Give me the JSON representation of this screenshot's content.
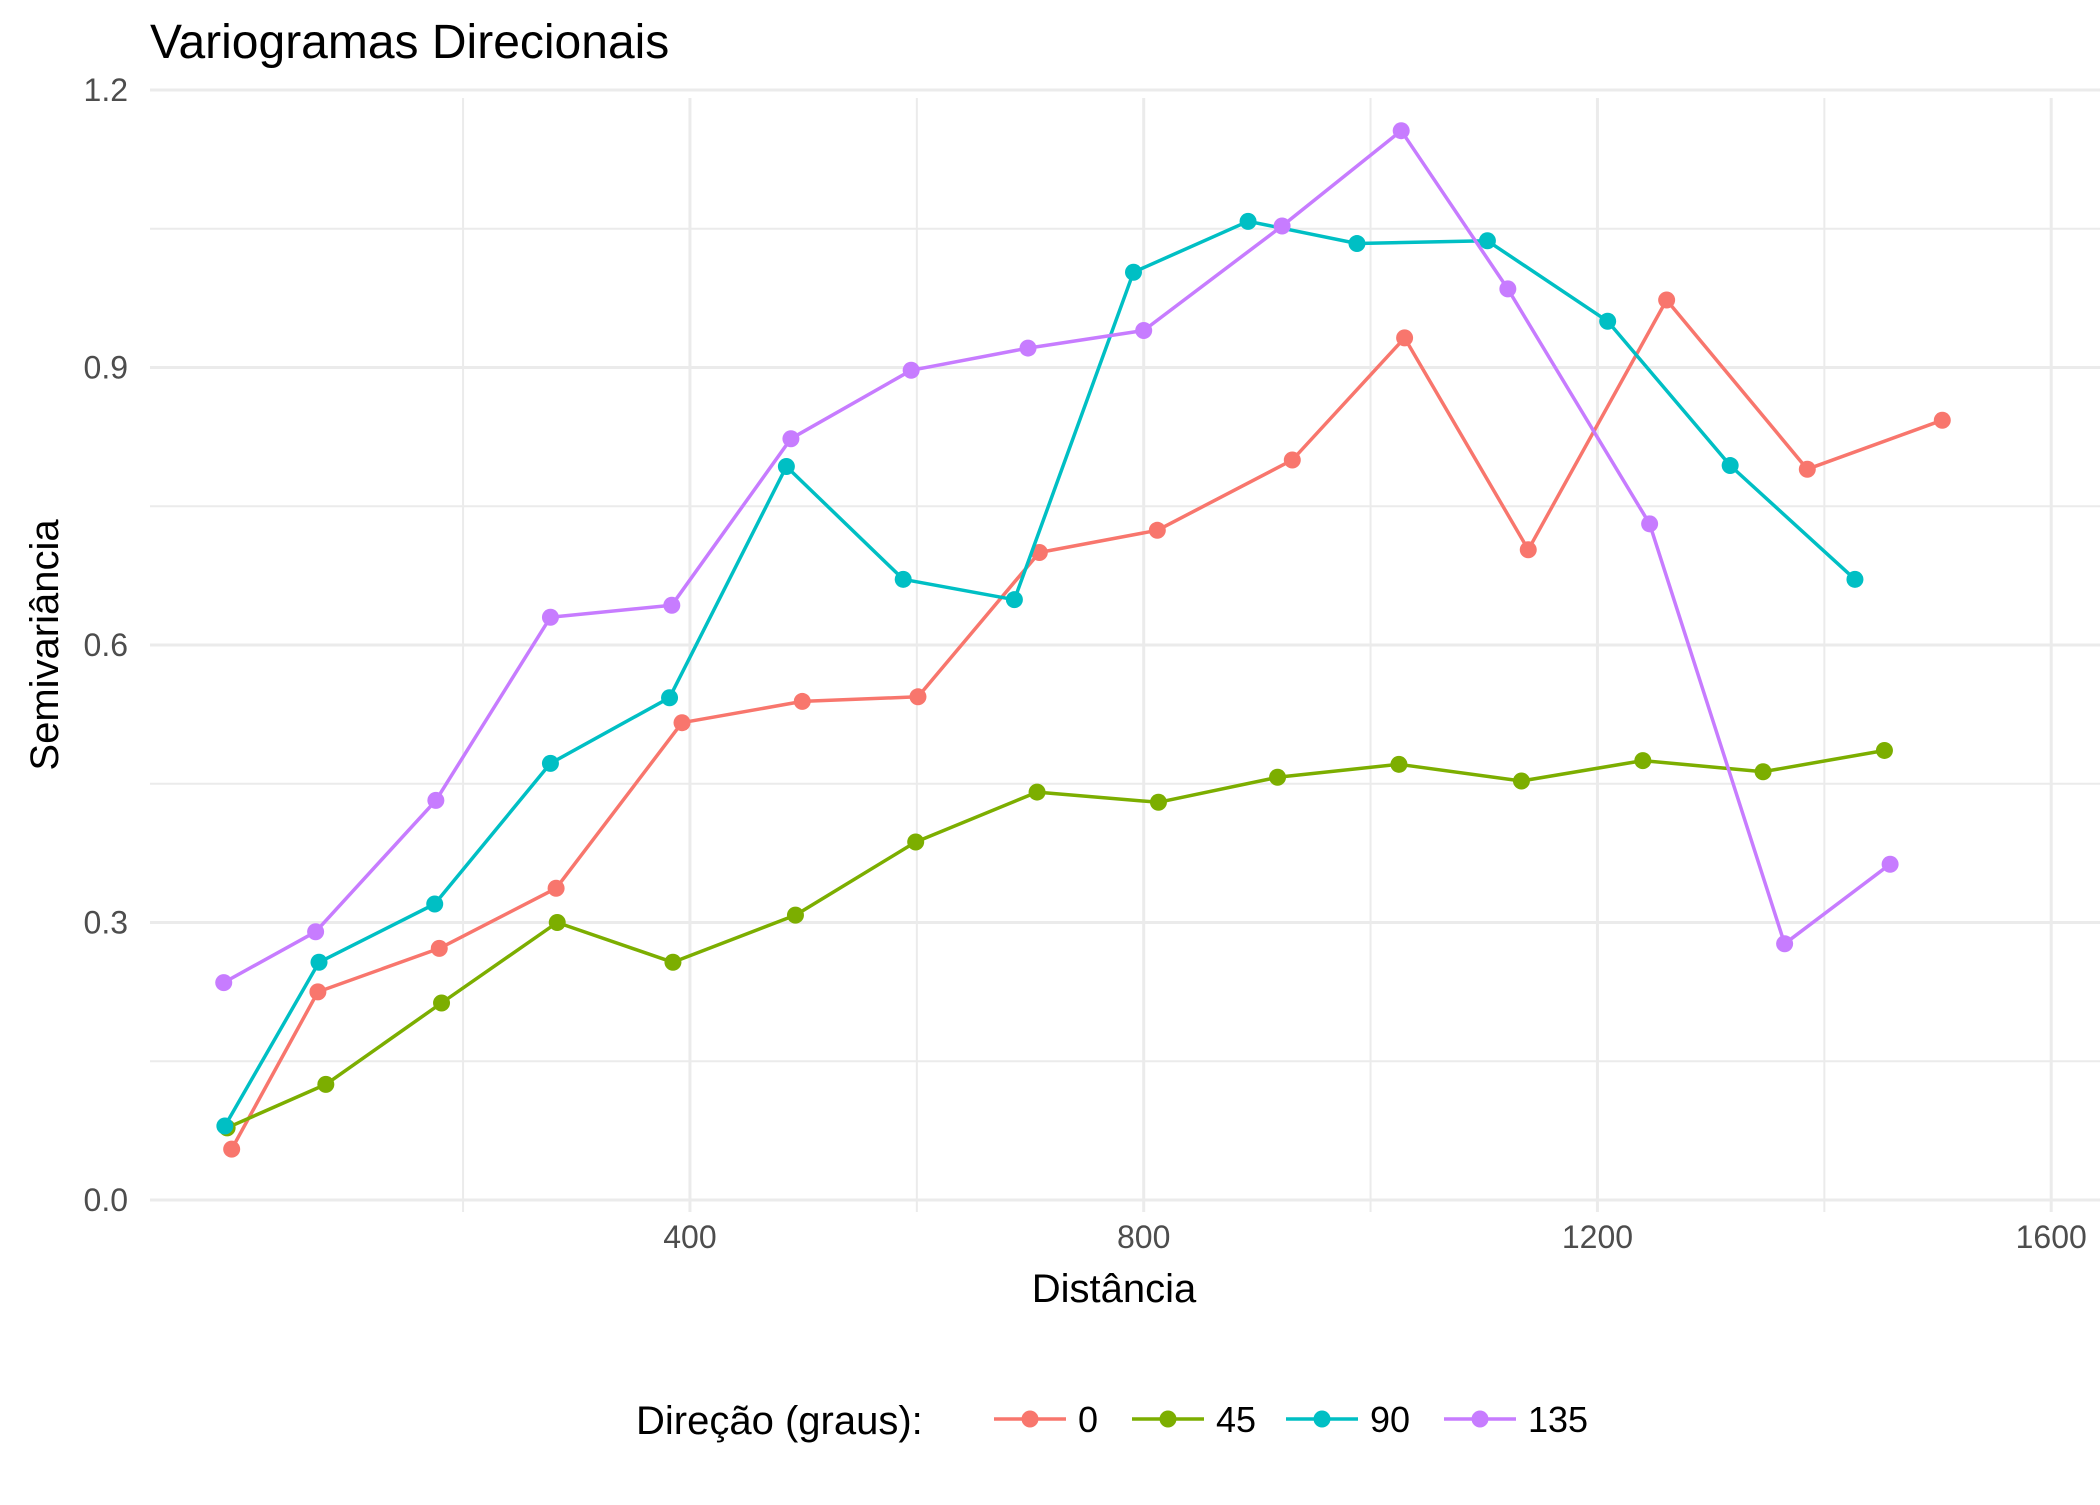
{
  "chart_data": {
    "type": "line",
    "title": "Variogramas Direcionais",
    "xlabel": "Distância",
    "ylabel": "Semivariância",
    "xlim": [
      -76,
      1606
    ],
    "ylim": [
      0,
      1.2
    ],
    "x_ticks": [
      400,
      800,
      1200,
      1600
    ],
    "x_minor_ticks": [
      200,
      600,
      1000,
      1400
    ],
    "y_ticks": [
      0.0,
      0.3,
      0.6,
      0.9,
      1.2
    ],
    "y_tick_labels": [
      "0.0",
      "0.3",
      "0.6",
      "0.9",
      "1.2"
    ],
    "y_minor_ticks": [
      0.15,
      0.45,
      0.75,
      1.05
    ],
    "grid": true,
    "legend": {
      "title": "Direção (graus):",
      "placement": "bottom"
    },
    "series": [
      {
        "name": "0",
        "color": "#F8766D",
        "x": [
          -4,
          72,
          179,
          282,
          393,
          499,
          601,
          708,
          812,
          931,
          1030,
          1139,
          1261,
          1385,
          1504
        ],
        "y": [
          0.055,
          0.225,
          0.272,
          0.337,
          0.516,
          0.539,
          0.544,
          0.7,
          0.724,
          0.8,
          0.932,
          0.703,
          0.973,
          0.79,
          0.843
        ]
      },
      {
        "name": "45",
        "color": "#7CAE00",
        "x": [
          -8,
          79,
          181,
          283,
          385,
          493,
          599,
          706,
          813,
          918,
          1025,
          1133,
          1240,
          1346,
          1453
        ],
        "y": [
          0.078,
          0.125,
          0.213,
          0.3,
          0.257,
          0.308,
          0.387,
          0.441,
          0.43,
          0.457,
          0.471,
          0.453,
          0.475,
          0.463,
          0.486
        ]
      },
      {
        "name": "90",
        "color": "#00BFC4",
        "x": [
          -10,
          73,
          175,
          277,
          382,
          485,
          588,
          686,
          791,
          892,
          988,
          1103,
          1209,
          1317,
          1427
        ],
        "y": [
          0.08,
          0.257,
          0.32,
          0.472,
          0.543,
          0.793,
          0.671,
          0.649,
          1.003,
          1.058,
          1.034,
          1.037,
          0.95,
          0.794,
          0.671
        ]
      },
      {
        "name": "135",
        "color": "#C77CFF",
        "x": [
          -11,
          70,
          176,
          277,
          384,
          489,
          595,
          698,
          800,
          922,
          1027,
          1121,
          1246,
          1365,
          1458
        ],
        "y": [
          0.235,
          0.29,
          0.432,
          0.63,
          0.643,
          0.823,
          0.897,
          0.921,
          0.94,
          1.053,
          1.156,
          0.985,
          0.731,
          0.277,
          0.363
        ]
      }
    ]
  }
}
